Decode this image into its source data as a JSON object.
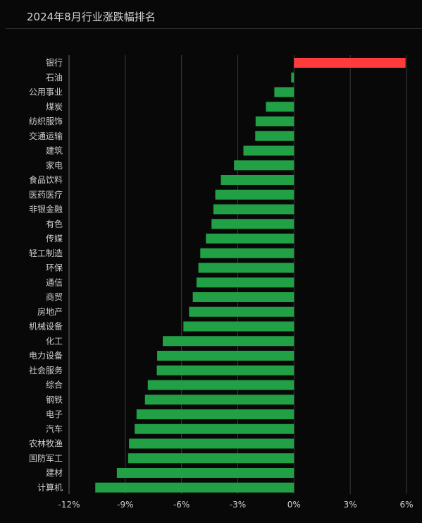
{
  "chart_data": {
    "type": "bar",
    "orientation": "horizontal",
    "title": "2024年8月行业涨跌幅排名",
    "xlabel": "",
    "ylabel": "",
    "xlim": [
      -12,
      6
    ],
    "ticks": [
      -12,
      -9,
      -6,
      -3,
      0,
      3,
      6
    ],
    "tick_labels": [
      "-12%",
      "-9%",
      "-6%",
      "-3%",
      "0%",
      "3%",
      "6%"
    ],
    "grid": true,
    "legend": "none",
    "colors": {
      "positive": "#ff3b3b",
      "negative": "#22a045",
      "grid": "#3a3a3a",
      "axis": "#6a6a6a"
    },
    "categories": [
      "银行",
      "石油",
      "公用事业",
      "煤炭",
      "纺织服饰",
      "交通运输",
      "建筑",
      "家电",
      "食品饮料",
      "医药医疗",
      "非银金融",
      "有色",
      "传媒",
      "轻工制造",
      "环保",
      "通信",
      "商贸",
      "房地产",
      "机械设备",
      "化工",
      "电力设备",
      "社会服务",
      "综合",
      "钢铁",
      "电子",
      "汽车",
      "农林牧渔",
      "国防军工",
      "建材",
      "计算机"
    ],
    "values": [
      5.95,
      -0.15,
      -1.05,
      -1.5,
      -2.05,
      -2.07,
      -2.7,
      -3.2,
      -3.9,
      -4.2,
      -4.3,
      -4.4,
      -4.7,
      -5.0,
      -5.1,
      -5.2,
      -5.4,
      -5.6,
      -5.9,
      -7.0,
      -7.3,
      -7.32,
      -7.8,
      -7.95,
      -8.4,
      -8.5,
      -8.8,
      -8.85,
      -9.45,
      -10.6
    ]
  }
}
